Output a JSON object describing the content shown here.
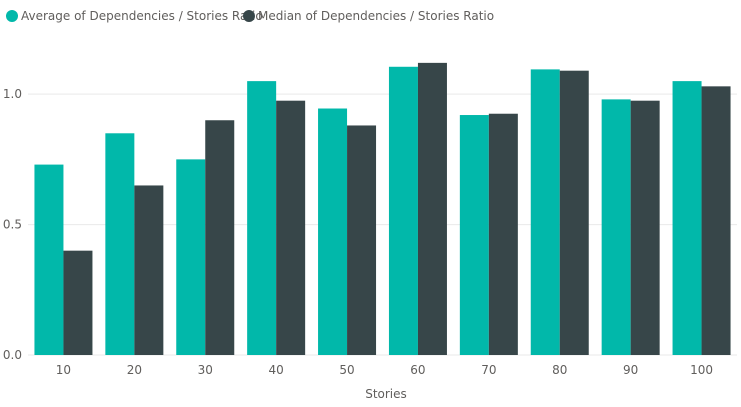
{
  "chart_data": {
    "type": "bar",
    "title": "",
    "xlabel": "Stories",
    "ylabel": "",
    "categories": [
      "10",
      "20",
      "30",
      "40",
      "50",
      "60",
      "70",
      "80",
      "90",
      "100"
    ],
    "series": [
      {
        "name": "Average of Dependencies / Stories Ratio",
        "color": "#01b8aa",
        "values": [
          0.73,
          0.85,
          0.75,
          1.05,
          0.945,
          1.105,
          0.92,
          1.095,
          0.98,
          1.05
        ]
      },
      {
        "name": "Median of Dependencies / Stories Ratio",
        "color": "#374649",
        "values": [
          0.4,
          0.65,
          0.9,
          0.975,
          0.88,
          1.12,
          0.925,
          1.09,
          0.975,
          1.03
        ]
      }
    ],
    "yticks": [
      0.0,
      0.5,
      1.0
    ],
    "ytick_labels": [
      "0.0",
      "0.5",
      "1.0"
    ],
    "ylim": [
      0,
      1.2
    ],
    "grid": true,
    "legend_position": "top-left"
  }
}
